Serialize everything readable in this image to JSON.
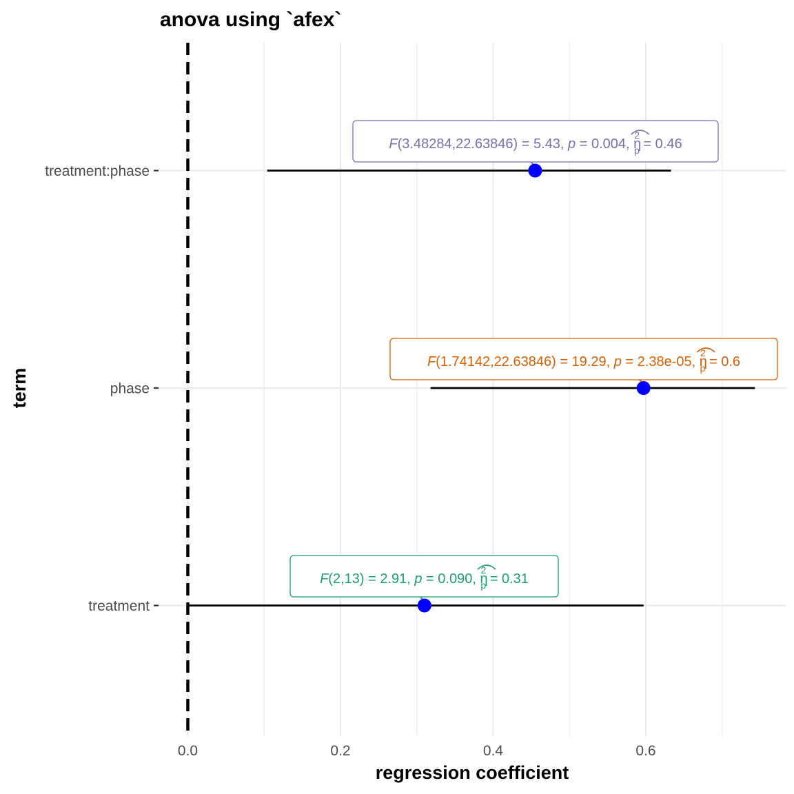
{
  "chart_data": {
    "type": "scatter",
    "title": "anova using `afex`",
    "xlabel": "regression coefficient",
    "ylabel": "term",
    "xlim": [
      0,
      0.75
    ],
    "x_ticks": [
      {
        "value": 0.0,
        "label": "0.0"
      },
      {
        "value": 0.2,
        "label": "0.2"
      },
      {
        "value": 0.4,
        "label": "0.4"
      },
      {
        "value": 0.6,
        "label": "0.6"
      }
    ],
    "grid": true,
    "reference_line": {
      "x": 0,
      "style": "dashed",
      "color": "#000000"
    },
    "point_color": "#0000ff",
    "terms": [
      {
        "name": "treatment",
        "estimate": 0.31,
        "ci_low": 0.0,
        "ci_high": 0.597,
        "label_color": "#1b9e77",
        "label": {
          "F_sym": "F",
          "df": "2,13",
          "F_val": "2.91",
          "p_sym": "p",
          "p_val": "0.090",
          "eta_sym": "η",
          "sub": "p",
          "sup": "2",
          "eta_val": "0.31"
        }
      },
      {
        "name": "phase",
        "estimate": 0.597,
        "ci_low": 0.318,
        "ci_high": 0.743,
        "label_color": "#d95f02",
        "label": {
          "F_sym": "F",
          "df": "1.74142,22.63846",
          "F_val": "19.29",
          "p_sym": "p",
          "p_val": "2.38e-05",
          "eta_sym": "η",
          "sub": "p",
          "sup": "2",
          "eta_val": "0.6"
        }
      },
      {
        "name": "treatment:phase",
        "estimate": 0.455,
        "ci_low": 0.104,
        "ci_high": 0.633,
        "label_color": "#7570b3",
        "label": {
          "F_sym": "F",
          "df": "3.48284,22.63846",
          "F_val": "5.43",
          "p_sym": "p",
          "p_val": "0.004",
          "eta_sym": "η",
          "sub": "p",
          "sup": "2",
          "eta_val": "0.46"
        }
      }
    ]
  }
}
